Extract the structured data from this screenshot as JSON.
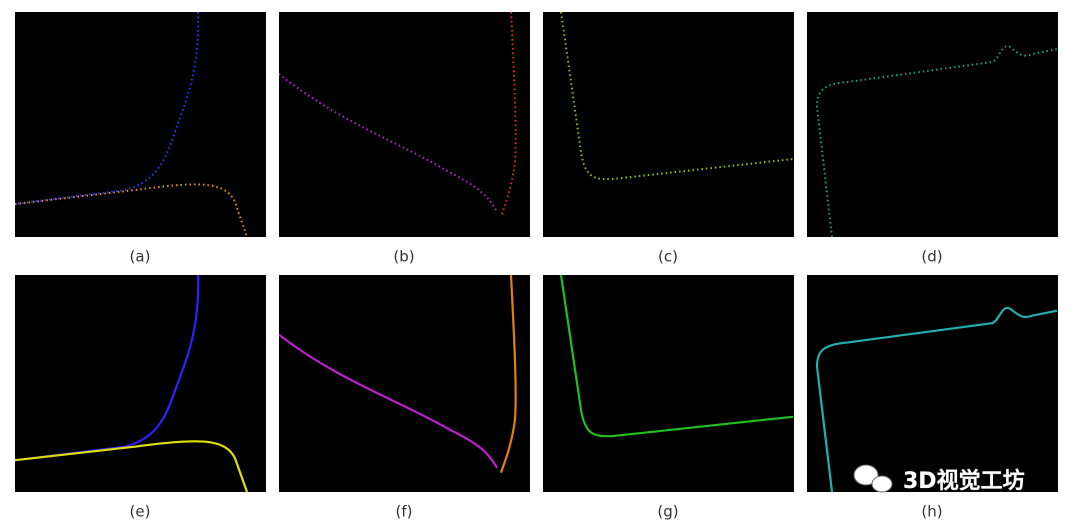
{
  "panels": [
    {
      "label": "(a)"
    },
    {
      "label": "(b)"
    },
    {
      "label": "(c)"
    },
    {
      "label": "(d)"
    },
    {
      "label": "(e)"
    },
    {
      "label": "(f)"
    },
    {
      "label": "(g)"
    },
    {
      "label": "(h)"
    }
  ],
  "watermark": {
    "text": "3D视觉工坊"
  }
}
